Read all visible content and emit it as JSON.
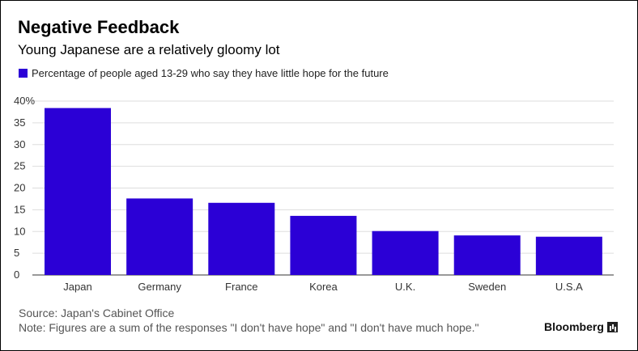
{
  "title": "Negative Feedback",
  "subtitle": "Young Japanese are a relatively gloomy lot",
  "legend_label": "Percentage of people aged 13-29 who say they have little hope for the future",
  "source": "Source: Japan's Cabinet Office",
  "note": "Note: Figures are a sum of the responses \"I don't have hope\" and \"I don't have much hope.\"",
  "brand": "Bloomberg",
  "colors": {
    "bar": "#2b00d6",
    "grid": "#dddddd",
    "axis": "#333333"
  },
  "chart_data": {
    "type": "bar",
    "title": "Negative Feedback",
    "subtitle": "Young Japanese are a relatively gloomy lot",
    "xlabel": "",
    "ylabel": "",
    "categories": [
      "Japan",
      "Germany",
      "France",
      "Korea",
      "U.K.",
      "Sweden",
      "U.S.A"
    ],
    "series": [
      {
        "name": "Percentage of people aged 13-29 who say they have little hope for the future",
        "values": [
          38.4,
          17.6,
          16.6,
          13.6,
          10.1,
          9.1,
          8.8
        ]
      }
    ],
    "ylim": [
      0,
      40
    ],
    "yticks": [
      0,
      5,
      10,
      15,
      20,
      25,
      30,
      35,
      40
    ],
    "ytick_labels": [
      "0",
      "5",
      "10",
      "15",
      "20",
      "25",
      "30",
      "35",
      "40%"
    ],
    "grid": true,
    "legend_position": "top-left"
  }
}
